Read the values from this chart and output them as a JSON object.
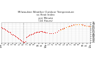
{
  "title": "Milwaukee Weather Outdoor Temperature\nvs Heat Index\nper Minute\n(24 Hours)",
  "title_fontsize": 2.8,
  "title_color": "#333333",
  "bg_color": "#ffffff",
  "plot_bg_color": "#ffffff",
  "grid_color": "#cccccc",
  "ylabel_color": "#333333",
  "y_tick_fontsize": 2.8,
  "x_tick_fontsize": 2.2,
  "vline_x": 360,
  "vline_color": "#888888",
  "vline_style": ":",
  "ylim": [
    23,
    75
  ],
  "xlim": [
    0,
    1440
  ],
  "y_ticks": [
    25,
    30,
    35,
    40,
    45,
    50,
    55,
    60,
    65,
    70,
    75
  ],
  "x_ticks": [
    0,
    60,
    120,
    180,
    240,
    300,
    360,
    420,
    480,
    540,
    600,
    660,
    720,
    780,
    840,
    900,
    960,
    1020,
    1080,
    1140,
    1200,
    1260,
    1320,
    1380,
    1440
  ],
  "x_tick_labels": [
    "12a",
    "1",
    "2",
    "3",
    "4",
    "5",
    "6",
    "7",
    "8",
    "9",
    "10",
    "11",
    "12p",
    "1",
    "2",
    "3",
    "4",
    "5",
    "6",
    "7",
    "8",
    "9",
    "10",
    "11",
    "12a"
  ],
  "temp_color": "#dd0000",
  "heat_color": "#ff8800",
  "temp_data": [
    [
      0,
      62
    ],
    [
      15,
      61
    ],
    [
      30,
      60
    ],
    [
      45,
      59
    ],
    [
      60,
      57
    ],
    [
      75,
      56
    ],
    [
      90,
      54
    ],
    [
      105,
      52
    ],
    [
      120,
      51
    ],
    [
      135,
      50
    ],
    [
      150,
      48
    ],
    [
      165,
      46
    ],
    [
      180,
      44
    ],
    [
      195,
      43
    ],
    [
      210,
      41
    ],
    [
      225,
      40
    ],
    [
      240,
      38
    ],
    [
      255,
      36
    ],
    [
      270,
      34
    ],
    [
      285,
      33
    ],
    [
      300,
      31
    ],
    [
      315,
      29
    ],
    [
      330,
      27
    ],
    [
      345,
      26
    ],
    [
      360,
      25
    ],
    [
      375,
      25
    ],
    [
      390,
      26
    ],
    [
      400,
      36
    ],
    [
      410,
      38
    ],
    [
      420,
      39
    ],
    [
      435,
      40
    ],
    [
      450,
      42
    ],
    [
      465,
      43
    ],
    [
      480,
      44
    ],
    [
      495,
      45
    ],
    [
      510,
      46
    ],
    [
      525,
      47
    ],
    [
      540,
      48
    ],
    [
      555,
      49
    ],
    [
      570,
      50
    ],
    [
      585,
      50
    ],
    [
      600,
      51
    ],
    [
      615,
      51
    ],
    [
      630,
      52
    ],
    [
      645,
      52
    ],
    [
      660,
      52
    ],
    [
      675,
      51
    ],
    [
      690,
      50
    ],
    [
      705,
      50
    ],
    [
      720,
      49
    ],
    [
      735,
      48
    ],
    [
      780,
      47
    ],
    [
      810,
      47
    ],
    [
      840,
      47
    ],
    [
      870,
      49
    ],
    [
      900,
      51
    ],
    [
      930,
      54
    ],
    [
      960,
      57
    ],
    [
      990,
      59
    ],
    [
      1020,
      61
    ],
    [
      1050,
      63
    ],
    [
      1080,
      65
    ],
    [
      1110,
      66
    ],
    [
      1140,
      68
    ],
    [
      1170,
      69
    ],
    [
      1200,
      70
    ],
    [
      1230,
      70
    ],
    [
      1260,
      70
    ],
    [
      1290,
      70
    ],
    [
      1320,
      69
    ],
    [
      1350,
      68
    ],
    [
      1380,
      67
    ],
    [
      1410,
      66
    ],
    [
      1440,
      65
    ]
  ],
  "heat_data": [
    [
      960,
      56
    ],
    [
      990,
      58
    ],
    [
      1020,
      60
    ],
    [
      1050,
      62
    ],
    [
      1080,
      64
    ],
    [
      1110,
      65
    ],
    [
      1140,
      67
    ],
    [
      1170,
      68
    ],
    [
      1200,
      69
    ],
    [
      1230,
      69
    ],
    [
      1260,
      69
    ],
    [
      1290,
      69
    ],
    [
      1320,
      68
    ],
    [
      1350,
      67
    ],
    [
      1380,
      66
    ],
    [
      1410,
      65
    ],
    [
      1440,
      64
    ]
  ]
}
